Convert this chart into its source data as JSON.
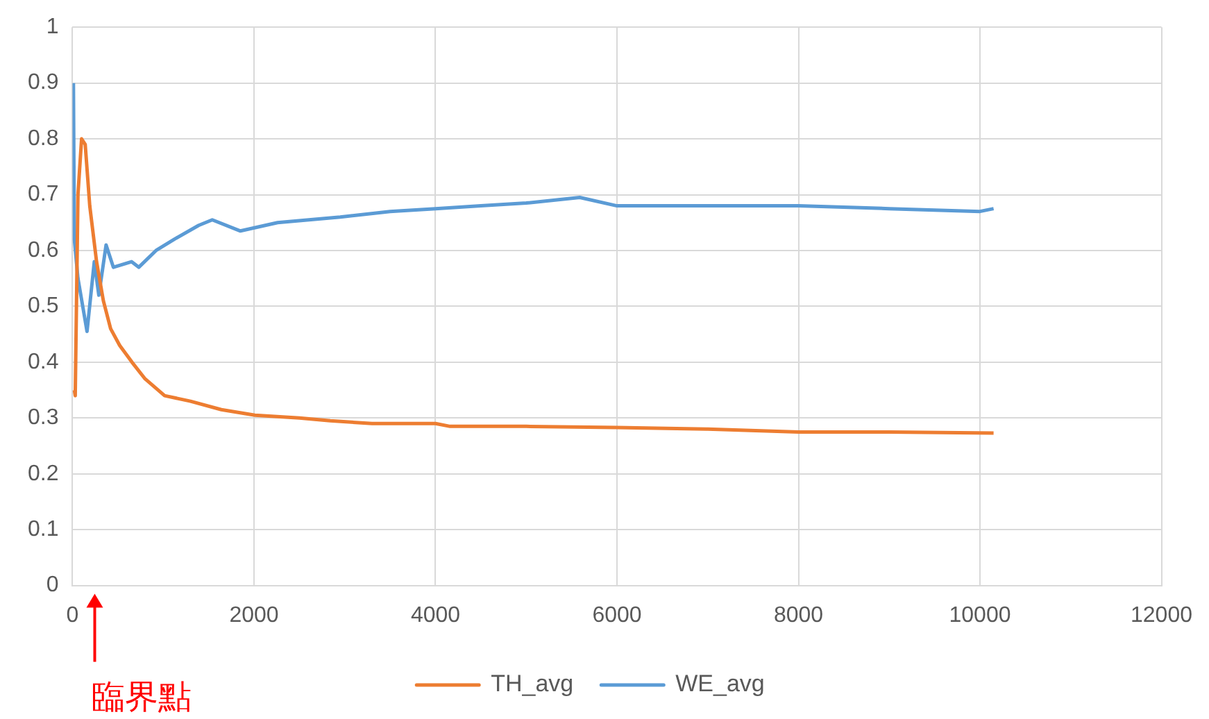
{
  "chart_data": {
    "type": "line",
    "xlim": [
      0,
      12000
    ],
    "xticks": [
      0,
      2000,
      4000,
      6000,
      8000,
      10000,
      12000
    ],
    "ylim": [
      0,
      1
    ],
    "yticks": [
      0,
      0.1,
      0.2,
      0.3,
      0.4,
      0.5,
      0.6,
      0.7,
      0.8,
      0.9,
      1
    ],
    "grid": true,
    "legend": "bottom",
    "marker": "none",
    "line_style": "solid",
    "annotations": [
      "臨界點"
    ],
    "series": [
      {
        "name": "TH_avg",
        "color": "#ed7d31",
        "x": [
          20,
          30,
          60,
          100,
          140,
          190,
          265,
          340,
          420,
          520,
          655,
          800,
          1015,
          1300,
          1640,
          2010,
          2500,
          2840,
          3300,
          4000,
          4160,
          5000,
          6000,
          7000,
          8000,
          9000,
          10150
        ],
        "values": [
          0.35,
          0.34,
          0.7,
          0.8,
          0.79,
          0.68,
          0.58,
          0.51,
          0.46,
          0.43,
          0.4,
          0.37,
          0.34,
          0.33,
          0.315,
          0.305,
          0.3,
          0.295,
          0.29,
          0.29,
          0.285,
          0.285,
          0.283,
          0.28,
          0.275,
          0.275,
          0.273
        ]
      },
      {
        "name": "WE_avg",
        "color": "#5b9bd5",
        "x": [
          10,
          20,
          60,
          160,
          240,
          290,
          370,
          450,
          650,
          730,
          920,
          1120,
          1390,
          1540,
          1850,
          2260,
          2950,
          3500,
          4000,
          4500,
          5000,
          5590,
          6000,
          7000,
          8000,
          9000,
          10000,
          10150
        ],
        "values": [
          0.9,
          0.62,
          0.55,
          0.455,
          0.58,
          0.52,
          0.61,
          0.57,
          0.58,
          0.57,
          0.6,
          0.62,
          0.645,
          0.655,
          0.635,
          0.65,
          0.66,
          0.67,
          0.675,
          0.68,
          0.685,
          0.695,
          0.68,
          0.68,
          0.68,
          0.675,
          0.67,
          0.675
        ]
      }
    ]
  }
}
